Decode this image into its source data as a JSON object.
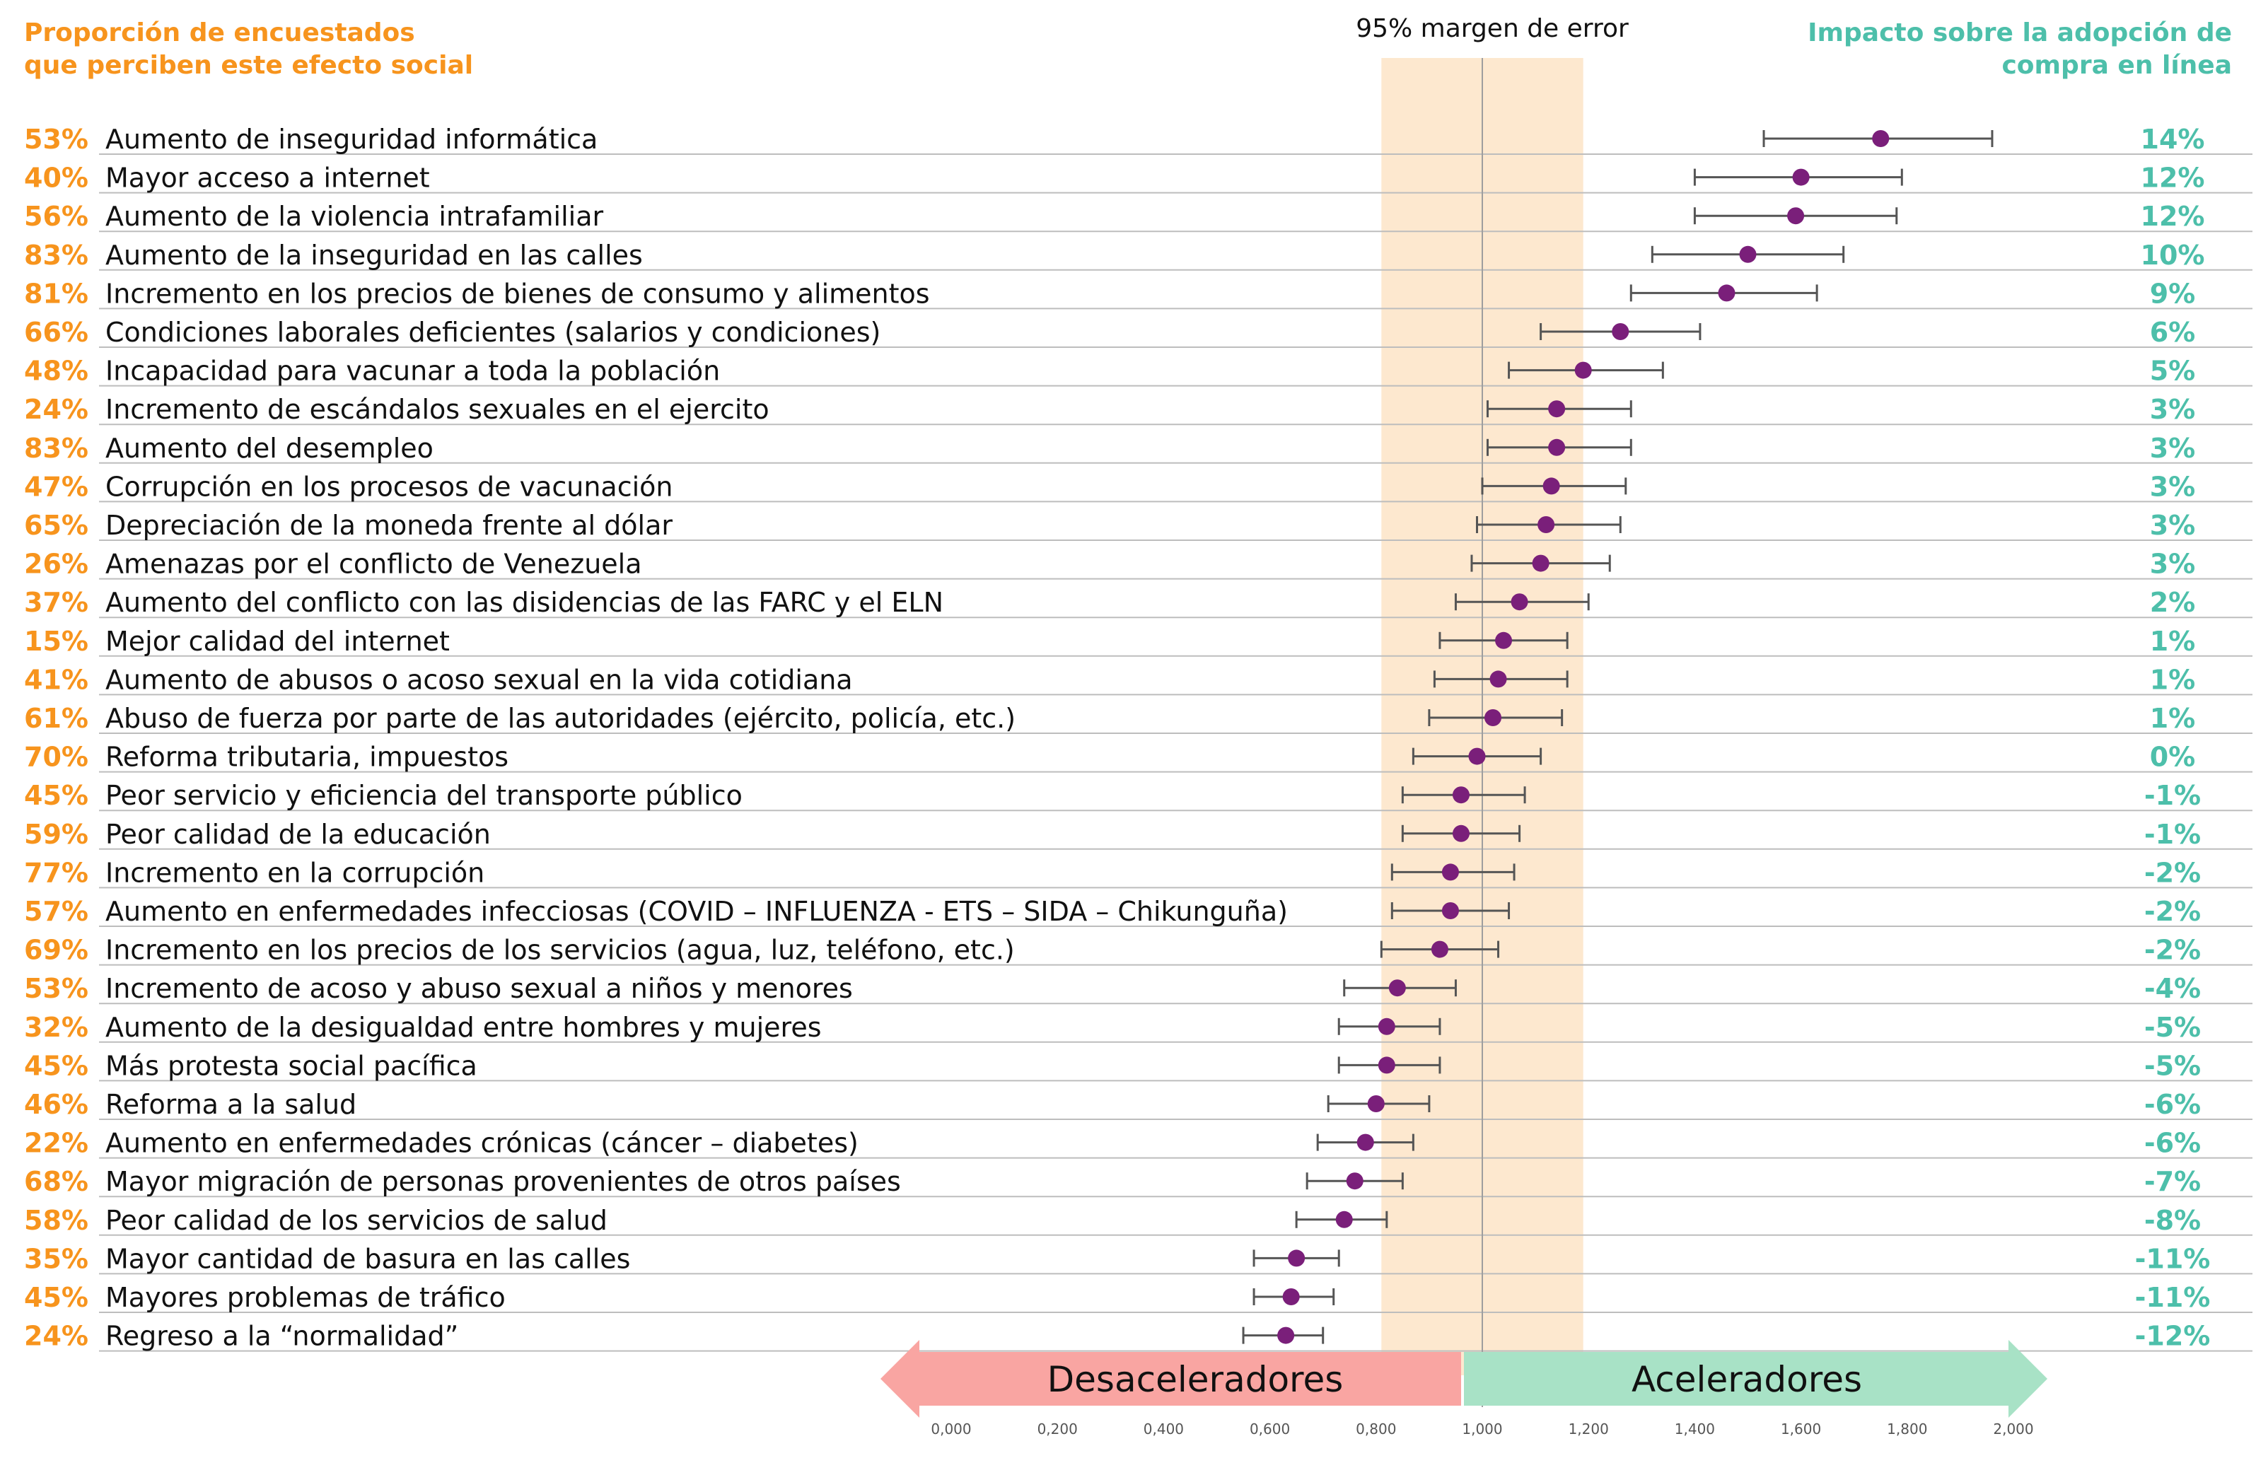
{
  "header": {
    "left_title": "Proporción de encuestados que perciben este efecto social",
    "right_title": "Impacto sobre la adopción de compra en línea",
    "band_label": "95% margen de error"
  },
  "arrows": {
    "left_label": "Desaceleradores",
    "right_label": "Aceleradores"
  },
  "colors": {
    "proportion": "#f7941d",
    "impact": "#4dbfaa",
    "point": "#7a1f7a",
    "band": "#fde8cf",
    "left_arrow": "#f9a5a2",
    "right_arrow": "#a8e2c6"
  },
  "chart_data": {
    "type": "scatter",
    "x_axis": {
      "range": [
        0,
        2
      ],
      "ticks": [
        "0,000",
        "0,200",
        "0,400",
        "0,600",
        "0,800",
        "1,000",
        "1,200",
        "1,400",
        "1,600",
        "1,800",
        "2,000"
      ],
      "reference": 1.0
    },
    "error_band": [
      0.81,
      1.19
    ],
    "rows": [
      {
        "pct": "53%",
        "label": "Aumento de inseguridad informática",
        "impact": "14%",
        "value": 1.75,
        "low": 1.53,
        "high": 1.96
      },
      {
        "pct": "40%",
        "label": "Mayor acceso a internet",
        "impact": "12%",
        "value": 1.6,
        "low": 1.4,
        "high": 1.79
      },
      {
        "pct": "56%",
        "label": "Aumento de la violencia intrafamiliar",
        "impact": "12%",
        "value": 1.59,
        "low": 1.4,
        "high": 1.78
      },
      {
        "pct": "83%",
        "label": "Aumento de la inseguridad en las calles",
        "impact": "10%",
        "value": 1.5,
        "low": 1.32,
        "high": 1.68
      },
      {
        "pct": "81%",
        "label": "Incremento en los precios de bienes de consumo y alimentos",
        "impact": "9%",
        "value": 1.46,
        "low": 1.28,
        "high": 1.63
      },
      {
        "pct": "66%",
        "label": "Condiciones laborales deficientes (salarios y condiciones)",
        "impact": "6%",
        "value": 1.26,
        "low": 1.11,
        "high": 1.41
      },
      {
        "pct": "48%",
        "label": "Incapacidad para vacunar a toda la población",
        "impact": "5%",
        "value": 1.19,
        "low": 1.05,
        "high": 1.34
      },
      {
        "pct": "24%",
        "label": "Incremento de escándalos sexuales en el ejercito",
        "impact": "3%",
        "value": 1.14,
        "low": 1.01,
        "high": 1.28
      },
      {
        "pct": "83%",
        "label": "Aumento del desempleo",
        "impact": "3%",
        "value": 1.14,
        "low": 1.01,
        "high": 1.28
      },
      {
        "pct": "47%",
        "label": "Corrupción en los procesos de vacunación",
        "impact": "3%",
        "value": 1.13,
        "low": 1.0,
        "high": 1.27
      },
      {
        "pct": "65%",
        "label": "Depreciación de la moneda frente al dólar",
        "impact": "3%",
        "value": 1.12,
        "low": 0.99,
        "high": 1.26
      },
      {
        "pct": "26%",
        "label": "Amenazas por el conflicto de Venezuela",
        "impact": "3%",
        "value": 1.11,
        "low": 0.98,
        "high": 1.24
      },
      {
        "pct": "37%",
        "label": "Aumento del conflicto con las disidencias de las FARC y el ELN",
        "impact": "2%",
        "value": 1.07,
        "low": 0.95,
        "high": 1.2
      },
      {
        "pct": "15%",
        "label": "Mejor calidad del internet",
        "impact": "1%",
        "value": 1.04,
        "low": 0.92,
        "high": 1.16
      },
      {
        "pct": "41%",
        "label": "Aumento de abusos o acoso sexual en la vida cotidiana",
        "impact": "1%",
        "value": 1.03,
        "low": 0.91,
        "high": 1.16
      },
      {
        "pct": "61%",
        "label": "Abuso de fuerza por parte de las autoridades (ejército, policía, etc.)",
        "impact": "1%",
        "value": 1.02,
        "low": 0.9,
        "high": 1.15
      },
      {
        "pct": "70%",
        "label": "Reforma tributaria, impuestos",
        "impact": "0%",
        "value": 0.99,
        "low": 0.87,
        "high": 1.11
      },
      {
        "pct": "45%",
        "label": "Peor servicio y eficiencia del transporte público",
        "impact": "-1%",
        "value": 0.96,
        "low": 0.85,
        "high": 1.08
      },
      {
        "pct": "59%",
        "label": "Peor calidad de la educación",
        "impact": "-1%",
        "value": 0.96,
        "low": 0.85,
        "high": 1.07
      },
      {
        "pct": "77%",
        "label": "Incremento en la corrupción",
        "impact": "-2%",
        "value": 0.94,
        "low": 0.83,
        "high": 1.06
      },
      {
        "pct": "57%",
        "label": "Aumento en enfermedades infecciosas (COVID – INFLUENZA - ETS – SIDA – Chikunguña)",
        "impact": "-2%",
        "value": 0.94,
        "low": 0.83,
        "high": 1.05
      },
      {
        "pct": "69%",
        "label": "Incremento en los precios de los servicios (agua, luz, teléfono, etc.)",
        "impact": "-2%",
        "value": 0.92,
        "low": 0.81,
        "high": 1.03
      },
      {
        "pct": "53%",
        "label": "Incremento de acoso y abuso sexual a niños y menores",
        "impact": "-4%",
        "value": 0.84,
        "low": 0.74,
        "high": 0.95
      },
      {
        "pct": "32%",
        "label": "Aumento de la desigualdad entre hombres y mujeres",
        "impact": "-5%",
        "value": 0.82,
        "low": 0.73,
        "high": 0.92
      },
      {
        "pct": "45%",
        "label": "Más protesta social pacífica",
        "impact": "-5%",
        "value": 0.82,
        "low": 0.73,
        "high": 0.92
      },
      {
        "pct": "46%",
        "label": "Reforma a la salud",
        "impact": "-6%",
        "value": 0.8,
        "low": 0.71,
        "high": 0.9
      },
      {
        "pct": "22%",
        "label": "Aumento en enfermedades crónicas (cáncer – diabetes)",
        "impact": "-6%",
        "value": 0.78,
        "low": 0.69,
        "high": 0.87
      },
      {
        "pct": "68%",
        "label": "Mayor migración de personas provenientes de otros países",
        "impact": "-7%",
        "value": 0.76,
        "low": 0.67,
        "high": 0.85
      },
      {
        "pct": "58%",
        "label": "Peor calidad de los servicios de salud",
        "impact": "-8%",
        "value": 0.74,
        "low": 0.65,
        "high": 0.82
      },
      {
        "pct": "35%",
        "label": "Mayor cantidad de basura en las calles",
        "impact": "-11%",
        "value": 0.65,
        "low": 0.57,
        "high": 0.73
      },
      {
        "pct": "45%",
        "label": "Mayores problemas de tráfico",
        "impact": "-11%",
        "value": 0.64,
        "low": 0.57,
        "high": 0.72
      },
      {
        "pct": "24%",
        "label": "Regreso a la “normalidad”",
        "impact": "-12%",
        "value": 0.63,
        "low": 0.55,
        "high": 0.7
      }
    ]
  }
}
